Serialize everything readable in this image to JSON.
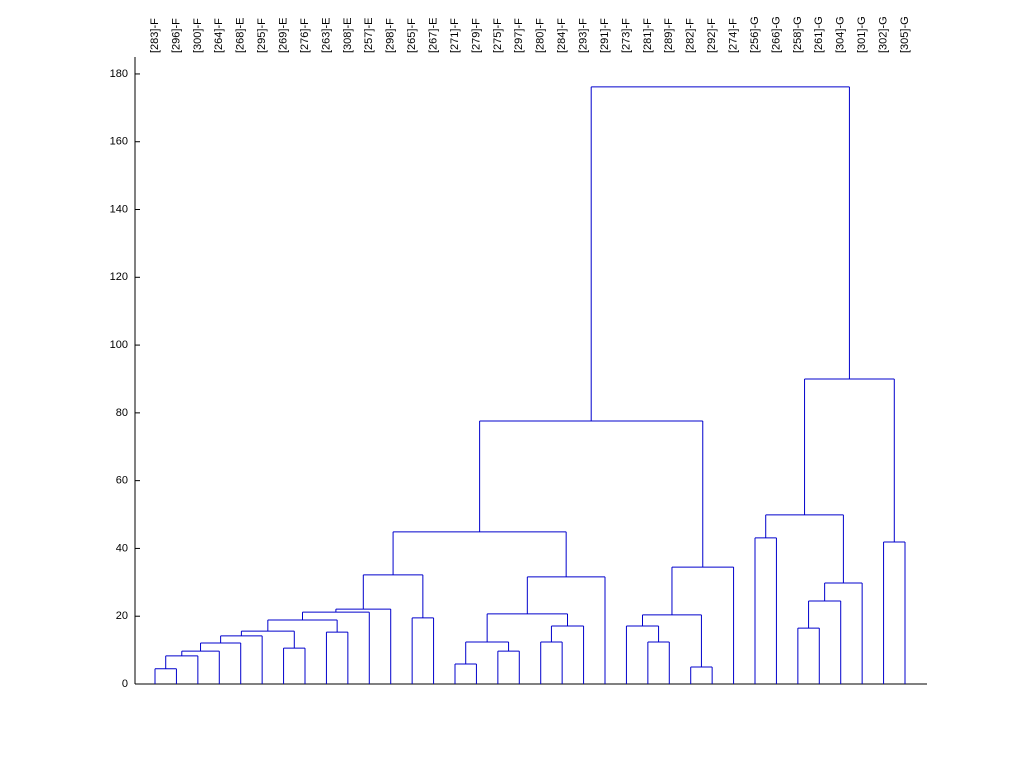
{
  "chart_data": {
    "type": "dendrogram",
    "color": "#0000cc",
    "ylim": [
      0,
      185
    ],
    "yticks": [
      0,
      20,
      40,
      60,
      80,
      100,
      120,
      140,
      160,
      180
    ],
    "tree": {
      "height": 176.2,
      "children": [
        {
          "height": 77.6,
          "children": [
            {
              "height": 44.9,
              "children": [
                {
                  "height": 32.2,
                  "children": [
                    {
                      "height": 22.1,
                      "children": [
                        {
                          "height": 21.2,
                          "children": [
                            {
                              "height": 18.9,
                              "children": [
                                {
                                  "height": 15.6,
                                  "children": [
                                    {
                                      "height": 14.2,
                                      "children": [
                                        {
                                          "height": 12.1,
                                          "children": [
                                            {
                                              "height": 9.7,
                                              "children": [
                                                {
                                                  "height": 8.3,
                                                  "children": [
                                                    {
                                                      "height": 4.5,
                                                      "children": [
                                                        {
                                                          "label": "[283]-F"
                                                        },
                                                        {
                                                          "label": "[296]-F"
                                                        }
                                                      ]
                                                    },
                                                    {
                                                      "label": "[300]-F"
                                                    }
                                                  ]
                                                },
                                                {
                                                  "label": "[264]-F"
                                                }
                                              ]
                                            },
                                            {
                                              "label": "[268]-E"
                                            }
                                          ]
                                        },
                                        {
                                          "label": "[295]-F"
                                        }
                                      ]
                                    },
                                    {
                                      "height": 10.6,
                                      "children": [
                                        {
                                          "label": "[269]-E"
                                        },
                                        {
                                          "label": "[276]-F"
                                        }
                                      ]
                                    }
                                  ]
                                },
                                {
                                  "height": 15.3,
                                  "children": [
                                    {
                                      "label": "[263]-E"
                                    },
                                    {
                                      "label": "[308]-E"
                                    }
                                  ]
                                }
                              ]
                            },
                            {
                              "label": "[257]-E"
                            }
                          ]
                        },
                        {
                          "label": "[298]-F"
                        }
                      ]
                    },
                    {
                      "height": 19.5,
                      "children": [
                        {
                          "label": "[265]-F"
                        },
                        {
                          "label": "[267]-E"
                        }
                      ]
                    }
                  ]
                },
                {
                  "height": 31.6,
                  "children": [
                    {
                      "height": 20.7,
                      "children": [
                        {
                          "height": 12.4,
                          "children": [
                            {
                              "height": 5.9,
                              "children": [
                                {
                                  "label": "[271]-F"
                                },
                                {
                                  "label": "[279]-F"
                                }
                              ]
                            },
                            {
                              "height": 9.7,
                              "children": [
                                {
                                  "label": "[275]-F"
                                },
                                {
                                  "label": "[297]-F"
                                }
                              ]
                            }
                          ]
                        },
                        {
                          "height": 17.1,
                          "children": [
                            {
                              "height": 12.4,
                              "children": [
                                {
                                  "label": "[280]-F"
                                },
                                {
                                  "label": "[284]-F"
                                }
                              ]
                            },
                            {
                              "label": "[293]-F"
                            }
                          ]
                        }
                      ]
                    },
                    {
                      "label": "[291]-F"
                    }
                  ]
                }
              ]
            },
            {
              "height": 34.5,
              "children": [
                {
                  "height": 20.4,
                  "children": [
                    {
                      "height": 17.1,
                      "children": [
                        {
                          "label": "[273]-F"
                        },
                        {
                          "height": 12.4,
                          "children": [
                            {
                              "label": "[281]-F"
                            },
                            {
                              "label": "[289]-F"
                            }
                          ]
                        }
                      ]
                    },
                    {
                      "height": 5.0,
                      "children": [
                        {
                          "label": "[282]-F"
                        },
                        {
                          "label": "[292]-F"
                        }
                      ]
                    }
                  ]
                },
                {
                  "label": "[274]-F"
                }
              ]
            }
          ]
        },
        {
          "height": 90.0,
          "children": [
            {
              "height": 49.9,
              "children": [
                {
                  "height": 43.1,
                  "children": [
                    {
                      "label": "[256]-G"
                    },
                    {
                      "label": "[266]-G"
                    }
                  ]
                },
                {
                  "height": 29.8,
                  "children": [
                    {
                      "height": 24.5,
                      "children": [
                        {
                          "height": 16.5,
                          "children": [
                            {
                              "label": "[258]-G"
                            },
                            {
                              "label": "[261]-G"
                            }
                          ]
                        },
                        {
                          "label": "[304]-G"
                        }
                      ]
                    },
                    {
                      "label": "[301]-G"
                    }
                  ]
                }
              ]
            },
            {
              "height": 41.9,
              "children": [
                {
                  "label": "[302]-G"
                },
                {
                  "label": "[305]-G"
                }
              ]
            }
          ]
        }
      ]
    }
  }
}
